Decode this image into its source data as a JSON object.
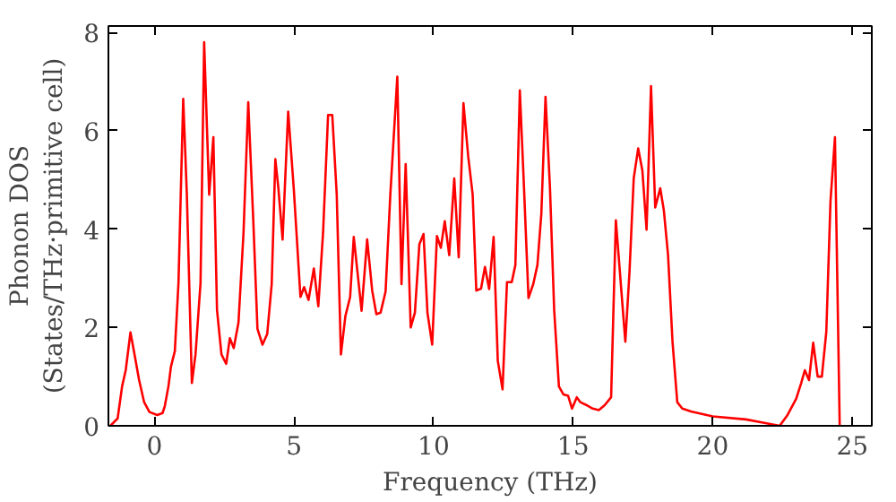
{
  "chart_data": {
    "type": "line",
    "xlabel": "Frequency (THz)",
    "ylabel": "Phonon DOS\n(States/THz·primitive cell)",
    "xlim": [
      -1.65,
      25.7
    ],
    "ylim": [
      0,
      8.13
    ],
    "xticks": [
      0,
      5,
      10,
      15,
      20,
      25
    ],
    "yticks": [
      0,
      2,
      4,
      6,
      8
    ],
    "grid": false,
    "marker": "none",
    "line_style": "solid",
    "series": [
      {
        "color": "#ff0000",
        "x": [
          -1.58,
          -1.32,
          -1.16,
          -1.03,
          -0.86,
          -0.73,
          -0.55,
          -0.37,
          -0.18,
          0.1,
          0.29,
          0.37,
          0.5,
          0.59,
          0.73,
          0.86,
          1.03,
          1.16,
          1.34,
          1.47,
          1.65,
          1.78,
          1.96,
          2.11,
          2.24,
          2.4,
          2.57,
          2.7,
          2.84,
          3.01,
          3.19,
          3.36,
          3.54,
          3.69,
          3.87,
          4.04,
          4.2,
          4.33,
          4.44,
          4.59,
          4.79,
          4.99,
          5.23,
          5.36,
          5.52,
          5.71,
          5.87,
          6.04,
          6.22,
          6.37,
          6.53,
          6.68,
          6.84,
          7.01,
          7.14,
          7.42,
          7.62,
          7.8,
          7.95,
          8.1,
          8.28,
          8.45,
          8.7,
          8.85,
          9.0,
          9.18,
          9.33,
          9.49,
          9.64,
          9.78,
          9.95,
          10.12,
          10.26,
          10.4,
          10.56,
          10.74,
          10.9,
          11.07,
          11.24,
          11.4,
          11.53,
          11.7,
          11.84,
          11.99,
          12.15,
          12.3,
          12.47,
          12.63,
          12.8,
          12.93,
          13.09,
          13.24,
          13.4,
          13.57,
          13.72,
          13.86,
          14.01,
          14.17,
          14.32,
          14.49,
          14.65,
          14.82,
          14.96,
          15.13,
          15.26,
          15.48,
          15.7,
          15.92,
          16.13,
          16.36,
          16.53,
          16.87,
          17.02,
          17.17,
          17.33,
          17.48,
          17.63,
          17.79,
          17.94,
          18.12,
          18.25,
          18.4,
          18.56,
          18.73,
          18.91,
          19.22,
          20.0,
          21.19,
          21.85,
          22.4,
          22.68,
          22.99,
          23.17,
          23.3,
          23.45,
          23.6,
          23.76,
          23.91,
          24.07,
          24.22,
          24.38,
          24.55
        ],
        "values": [
          0,
          0.15,
          0.8,
          1.13,
          1.9,
          1.5,
          0.93,
          0.48,
          0.28,
          0.22,
          0.26,
          0.4,
          0.8,
          1.2,
          1.52,
          2.9,
          6.65,
          4.7,
          0.87,
          1.45,
          2.9,
          7.8,
          4.7,
          5.87,
          2.36,
          1.45,
          1.26,
          1.78,
          1.58,
          2.1,
          3.92,
          6.58,
          4.18,
          1.97,
          1.65,
          1.87,
          2.88,
          5.42,
          4.83,
          3.79,
          6.39,
          4.83,
          2.62,
          2.82,
          2.56,
          3.2,
          2.43,
          3.92,
          6.32,
          6.32,
          4.7,
          1.45,
          2.23,
          2.62,
          3.84,
          2.34,
          3.79,
          2.75,
          2.27,
          2.3,
          2.73,
          4.7,
          7.1,
          2.88,
          5.32,
          2.0,
          2.3,
          3.69,
          3.9,
          2.3,
          1.65,
          3.86,
          3.62,
          4.16,
          3.47,
          5.03,
          3.43,
          6.56,
          5.48,
          4.7,
          2.75,
          2.79,
          3.23,
          2.78,
          3.84,
          1.32,
          0.74,
          2.92,
          2.92,
          3.27,
          6.82,
          4.83,
          2.6,
          2.88,
          3.27,
          4.31,
          6.69,
          4.83,
          2.36,
          0.8,
          0.64,
          0.61,
          0.35,
          0.58,
          0.48,
          0.42,
          0.35,
          0.32,
          0.42,
          0.58,
          4.18,
          1.71,
          3.14,
          5.03,
          5.64,
          5.19,
          3.99,
          6.91,
          4.44,
          4.83,
          4.38,
          3.47,
          1.71,
          0.48,
          0.35,
          0.29,
          0.19,
          0.13,
          0.06,
          0,
          0.22,
          0.55,
          0.87,
          1.13,
          0.93,
          1.69,
          1.0,
          1.0,
          1.91,
          4.57,
          5.87,
          0
        ]
      }
    ]
  }
}
